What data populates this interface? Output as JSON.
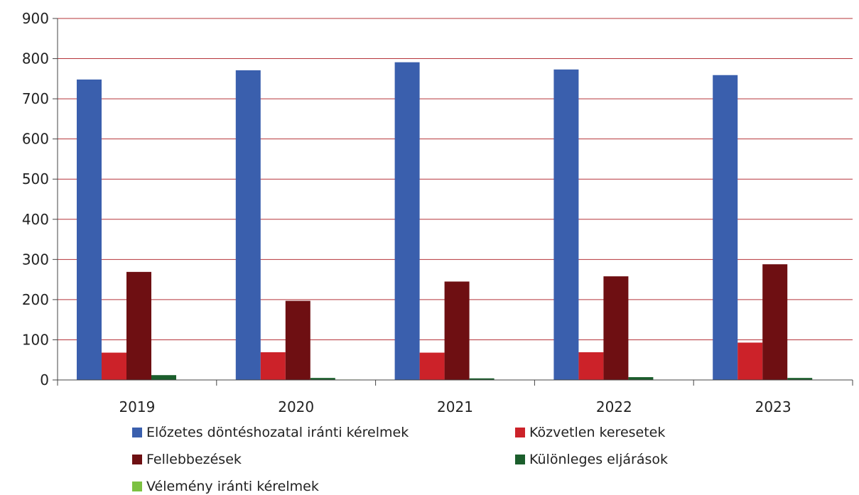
{
  "chart_data": {
    "type": "bar",
    "categories": [
      "2019",
      "2020",
      "2021",
      "2022",
      "2023"
    ],
    "series": [
      {
        "name": "Előzetes döntéshozatal iránti kérelmek",
        "color": "#3a5fad",
        "values": [
          748,
          771,
          791,
          773,
          759
        ]
      },
      {
        "name": "Közvetlen keresetek",
        "color": "#cc2229",
        "values": [
          68,
          69,
          68,
          69,
          93
        ]
      },
      {
        "name": "Fellebbezések",
        "color": "#6e0f12",
        "values": [
          269,
          197,
          245,
          258,
          288
        ]
      },
      {
        "name": "Különleges eljárások",
        "color": "#1b5e2c",
        "values": [
          12,
          5,
          4,
          7,
          5
        ]
      },
      {
        "name": "Vélemény iránti kérelmek",
        "color": "#7cc142",
        "values": [
          0,
          1,
          0,
          0,
          0
        ]
      }
    ],
    "ylim": [
      0,
      900
    ],
    "yticks": [
      0,
      100,
      200,
      300,
      400,
      500,
      600,
      700,
      800,
      900
    ],
    "grid": true,
    "gridColor": "#b5343a",
    "legend_position": "bottom"
  }
}
